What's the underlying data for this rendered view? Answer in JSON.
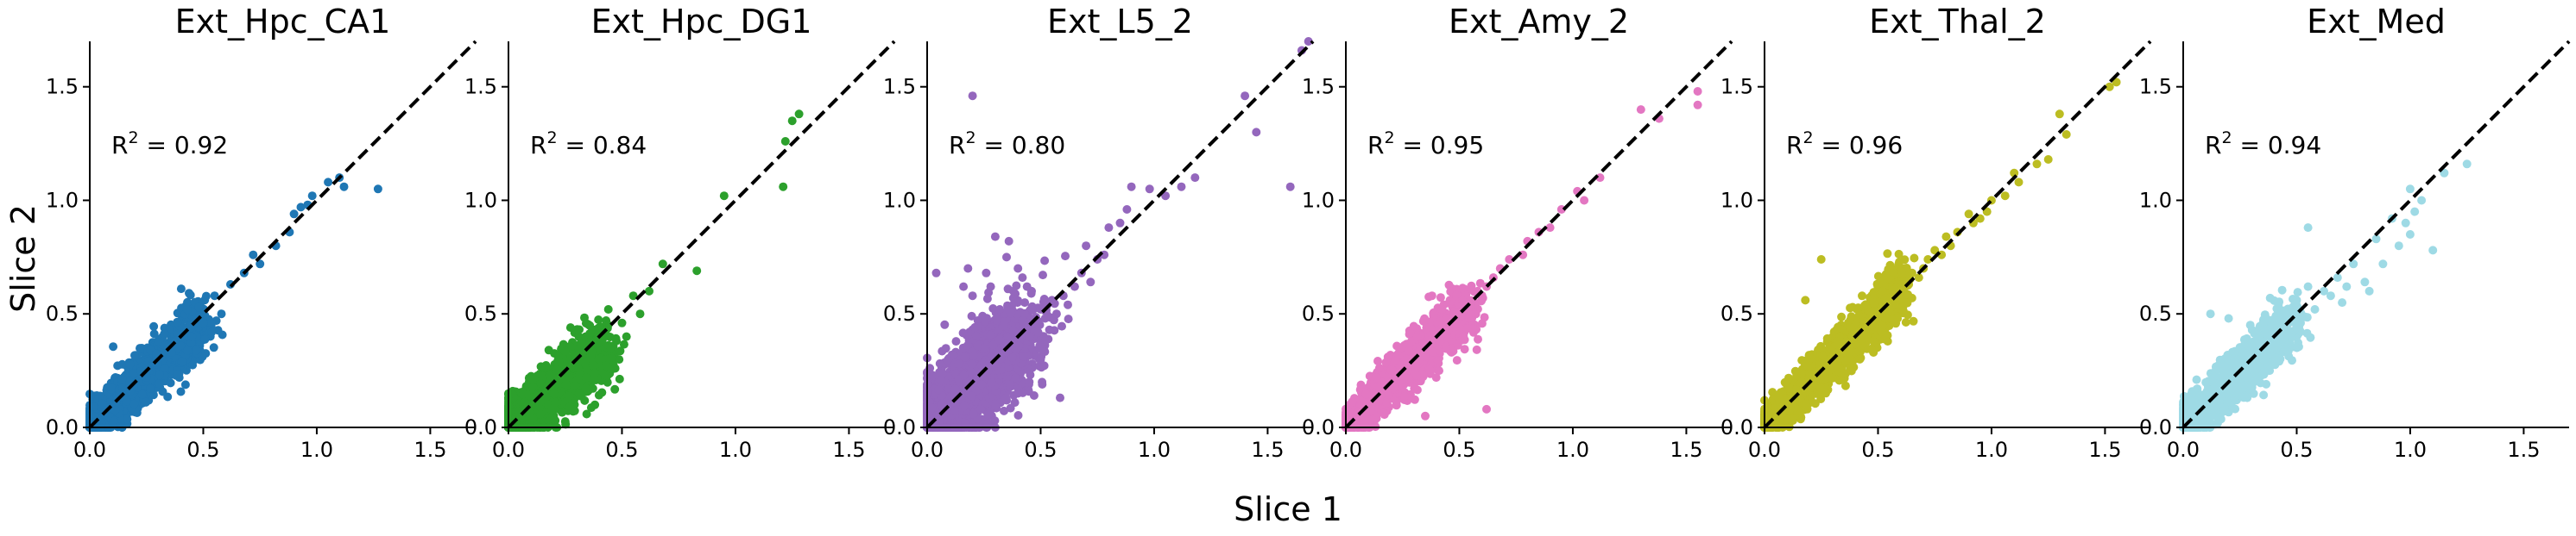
{
  "figure": {
    "xlabel": "Slice 1",
    "ylabel": "Slice 2"
  },
  "chart_data": [
    {
      "type": "scatter",
      "title": "Ext_Hpc_CA1",
      "color": "#1f77b4",
      "annotation": {
        "r2": "0.92"
      },
      "xlim": [
        0,
        1.7
      ],
      "ylim": [
        0,
        1.7
      ],
      "xticks": [
        "0.0",
        "0.5",
        "1.0",
        "1.5"
      ],
      "yticks": [
        "0.0",
        "0.5",
        "1.0",
        "1.5"
      ],
      "diagonal": "y = x (dashed)",
      "points": [
        [
          0.72,
          0.76
        ],
        [
          0.75,
          0.72
        ],
        [
          0.68,
          0.68
        ],
        [
          0.9,
          0.94
        ],
        [
          0.93,
          0.97
        ],
        [
          0.96,
          0.98
        ],
        [
          0.98,
          1.02
        ],
        [
          1.05,
          1.08
        ],
        [
          1.1,
          1.1
        ],
        [
          1.12,
          1.06
        ],
        [
          1.27,
          1.05
        ],
        [
          0.88,
          0.86
        ],
        [
          0.82,
          0.8
        ],
        [
          0.62,
          0.63
        ],
        [
          0.55,
          0.58
        ],
        [
          0.58,
          0.5
        ],
        [
          0.48,
          0.53
        ],
        [
          0.5,
          0.46
        ],
        [
          0.45,
          0.4
        ],
        [
          0.4,
          0.36
        ],
        [
          0.33,
          0.36
        ],
        [
          0.36,
          0.33
        ],
        [
          0.3,
          0.28
        ],
        [
          0.25,
          0.22
        ]
      ],
      "cloud": {
        "count": 1400,
        "xmax": 0.5,
        "mean_ratio": 0.92,
        "spread": 0.035,
        "seed": 11
      }
    },
    {
      "type": "scatter",
      "title": "Ext_Hpc_DG1",
      "color": "#2ca02c",
      "annotation": {
        "r2": "0.84"
      },
      "xlim": [
        0,
        1.7
      ],
      "ylim": [
        0,
        1.7
      ],
      "xticks": [
        "0.0",
        "0.5",
        "1.0",
        "1.5"
      ],
      "yticks": [
        "0.0",
        "0.5",
        "1.0",
        "1.5"
      ],
      "diagonal": "y = x (dashed)",
      "points": [
        [
          1.25,
          1.35
        ],
        [
          1.28,
          1.38
        ],
        [
          1.22,
          1.26
        ],
        [
          1.21,
          1.06
        ],
        [
          0.95,
          1.02
        ],
        [
          0.83,
          0.69
        ],
        [
          0.68,
          0.72
        ],
        [
          0.62,
          0.6
        ],
        [
          0.58,
          0.5
        ],
        [
          0.55,
          0.58
        ],
        [
          0.52,
          0.4
        ],
        [
          0.5,
          0.46
        ],
        [
          0.44,
          0.52
        ],
        [
          0.45,
          0.35
        ],
        [
          0.42,
          0.42
        ],
        [
          0.4,
          0.3
        ],
        [
          0.47,
          0.26
        ],
        [
          0.34,
          0.4
        ],
        [
          0.38,
          0.24
        ],
        [
          0.36,
          0.38
        ]
      ],
      "cloud": {
        "count": 1400,
        "xmax": 0.42,
        "mean_ratio": 0.82,
        "spread": 0.045,
        "seed": 23
      }
    },
    {
      "type": "scatter",
      "title": "Ext_L5_2",
      "color": "#9467bd",
      "annotation": {
        "r2": "0.80"
      },
      "xlim": [
        0,
        1.7
      ],
      "ylim": [
        0,
        1.7
      ],
      "xticks": [
        "0.0",
        "0.5",
        "1.0",
        "1.5"
      ],
      "yticks": [
        "0.0",
        "0.5",
        "1.0",
        "1.5"
      ],
      "diagonal": "y = x (dashed)",
      "points": [
        [
          0.2,
          1.46
        ],
        [
          0.04,
          0.68
        ],
        [
          1.65,
          1.66
        ],
        [
          1.68,
          1.7
        ],
        [
          1.6,
          1.06
        ],
        [
          1.4,
          1.46
        ],
        [
          1.45,
          1.3
        ],
        [
          1.18,
          1.1
        ],
        [
          1.12,
          1.06
        ],
        [
          1.05,
          1.02
        ],
        [
          0.98,
          1.05
        ],
        [
          0.9,
          1.06
        ],
        [
          0.88,
          0.96
        ],
        [
          0.85,
          0.9
        ],
        [
          0.8,
          0.88
        ],
        [
          0.78,
          0.76
        ],
        [
          0.75,
          0.74
        ],
        [
          0.7,
          0.8
        ],
        [
          0.68,
          0.68
        ],
        [
          0.72,
          0.64
        ],
        [
          0.65,
          0.62
        ],
        [
          0.62,
          0.54
        ],
        [
          0.6,
          0.58
        ],
        [
          0.57,
          0.5
        ],
        [
          0.55,
          0.56
        ],
        [
          0.52,
          0.48
        ],
        [
          0.5,
          0.52
        ],
        [
          0.48,
          0.46
        ],
        [
          0.46,
          0.6
        ],
        [
          0.44,
          0.62
        ],
        [
          0.42,
          0.66
        ],
        [
          0.45,
          0.4
        ],
        [
          0.4,
          0.7
        ],
        [
          0.43,
          0.55
        ],
        [
          0.32,
          0.52
        ],
        [
          0.3,
          0.84
        ],
        [
          0.26,
          0.68
        ],
        [
          0.28,
          0.62
        ],
        [
          0.38,
          0.6
        ],
        [
          0.35,
          0.75
        ],
        [
          0.36,
          0.82
        ],
        [
          0.5,
          0.3
        ],
        [
          0.45,
          0.2
        ],
        [
          0.4,
          0.15
        ],
        [
          0.2,
          0.58
        ],
        [
          0.18,
          0.7
        ],
        [
          0.16,
          0.62
        ]
      ],
      "cloud": {
        "count": 1600,
        "xmax": 0.45,
        "mean_ratio": 0.95,
        "spread": 0.075,
        "seed": 37
      }
    },
    {
      "type": "scatter",
      "title": "Ext_Amy_2",
      "color": "#e377c2",
      "annotation": {
        "r2": "0.95"
      },
      "xlim": [
        0,
        1.7
      ],
      "ylim": [
        0,
        1.7
      ],
      "xticks": [
        "0.0",
        "0.5",
        "1.0",
        "1.5"
      ],
      "yticks": [
        "0.0",
        "0.5",
        "1.0",
        "1.5"
      ],
      "diagonal": "y = x (dashed)",
      "points": [
        [
          1.55,
          1.48
        ],
        [
          1.55,
          1.42
        ],
        [
          1.38,
          1.36
        ],
        [
          1.3,
          1.4
        ],
        [
          1.12,
          1.1
        ],
        [
          1.05,
          1.0
        ],
        [
          1.02,
          1.04
        ],
        [
          0.95,
          0.96
        ],
        [
          0.9,
          0.88
        ],
        [
          0.85,
          0.86
        ],
        [
          0.8,
          0.82
        ],
        [
          0.78,
          0.76
        ],
        [
          0.72,
          0.74
        ],
        [
          0.68,
          0.7
        ],
        [
          0.65,
          0.66
        ],
        [
          0.62,
          0.62
        ],
        [
          0.6,
          0.58
        ],
        [
          0.58,
          0.6
        ],
        [
          0.55,
          0.54
        ],
        [
          0.52,
          0.52
        ],
        [
          0.62,
          0.08
        ],
        [
          0.35,
          0.05
        ]
      ],
      "cloud": {
        "count": 1500,
        "xmax": 0.55,
        "mean_ratio": 0.98,
        "spread": 0.03,
        "seed": 53
      }
    },
    {
      "type": "scatter",
      "title": "Ext_Thal_2",
      "color": "#bcbd22",
      "annotation": {
        "r2": "0.96"
      },
      "xlim": [
        0,
        1.7
      ],
      "ylim": [
        0,
        1.7
      ],
      "xticks": [
        "0.0",
        "0.5",
        "1.0",
        "1.5"
      ],
      "yticks": [
        "0.0",
        "0.5",
        "1.0",
        "1.5"
      ],
      "diagonal": "y = x (dashed)",
      "points": [
        [
          1.55,
          1.52
        ],
        [
          1.52,
          1.5
        ],
        [
          1.3,
          1.38
        ],
        [
          1.33,
          1.29
        ],
        [
          1.25,
          1.18
        ],
        [
          1.2,
          1.16
        ],
        [
          1.12,
          1.08
        ],
        [
          1.1,
          1.12
        ],
        [
          1.06,
          1.02
        ],
        [
          1.0,
          1.0
        ],
        [
          0.98,
          0.95
        ],
        [
          0.95,
          0.92
        ],
        [
          0.92,
          0.9
        ],
        [
          0.9,
          0.94
        ],
        [
          0.85,
          0.86
        ],
        [
          0.82,
          0.8
        ],
        [
          0.8,
          0.84
        ],
        [
          0.78,
          0.76
        ],
        [
          0.75,
          0.78
        ],
        [
          0.72,
          0.74
        ],
        [
          0.7,
          0.7
        ],
        [
          0.68,
          0.66
        ],
        [
          0.65,
          0.68
        ],
        [
          0.62,
          0.64
        ],
        [
          0.6,
          0.6
        ],
        [
          0.25,
          0.74
        ],
        [
          0.18,
          0.56
        ],
        [
          0.42,
          0.3
        ],
        [
          0.48,
          0.38
        ]
      ],
      "cloud": {
        "count": 1600,
        "xmax": 0.62,
        "mean_ratio": 1.0,
        "spread": 0.028,
        "seed": 71
      }
    },
    {
      "type": "scatter",
      "title": "Ext_Med",
      "color": "#9edae5",
      "annotation": {
        "r2": "0.94"
      },
      "xlim": [
        0,
        1.7
      ],
      "ylim": [
        0,
        1.7
      ],
      "xticks": [
        "0.0",
        "0.5",
        "1.0",
        "1.5"
      ],
      "yticks": [
        "0.0",
        "0.5",
        "1.0",
        "1.5"
      ],
      "diagonal": "y = x (dashed)",
      "points": [
        [
          1.25,
          1.16
        ],
        [
          1.15,
          1.12
        ],
        [
          1.05,
          1.0
        ],
        [
          1.0,
          1.05
        ],
        [
          1.02,
          0.95
        ],
        [
          0.98,
          0.9
        ],
        [
          0.95,
          0.8
        ],
        [
          1.0,
          0.85
        ],
        [
          1.1,
          0.78
        ],
        [
          0.92,
          0.92
        ],
        [
          0.88,
          0.72
        ],
        [
          0.85,
          0.83
        ],
        [
          0.8,
          0.64
        ],
        [
          0.82,
          0.6
        ],
        [
          0.75,
          0.72
        ],
        [
          0.72,
          0.62
        ],
        [
          0.7,
          0.55
        ],
        [
          0.68,
          0.66
        ],
        [
          0.65,
          0.58
        ],
        [
          0.62,
          0.6
        ],
        [
          0.58,
          0.52
        ],
        [
          0.55,
          0.62
        ],
        [
          0.52,
          0.5
        ],
        [
          0.5,
          0.56
        ],
        [
          0.55,
          0.88
        ],
        [
          0.45,
          0.45
        ],
        [
          0.48,
          0.4
        ],
        [
          0.12,
          0.5
        ],
        [
          0.2,
          0.48
        ]
      ],
      "cloud": {
        "count": 1300,
        "xmax": 0.48,
        "mean_ratio": 0.97,
        "spread": 0.035,
        "seed": 89
      }
    }
  ]
}
